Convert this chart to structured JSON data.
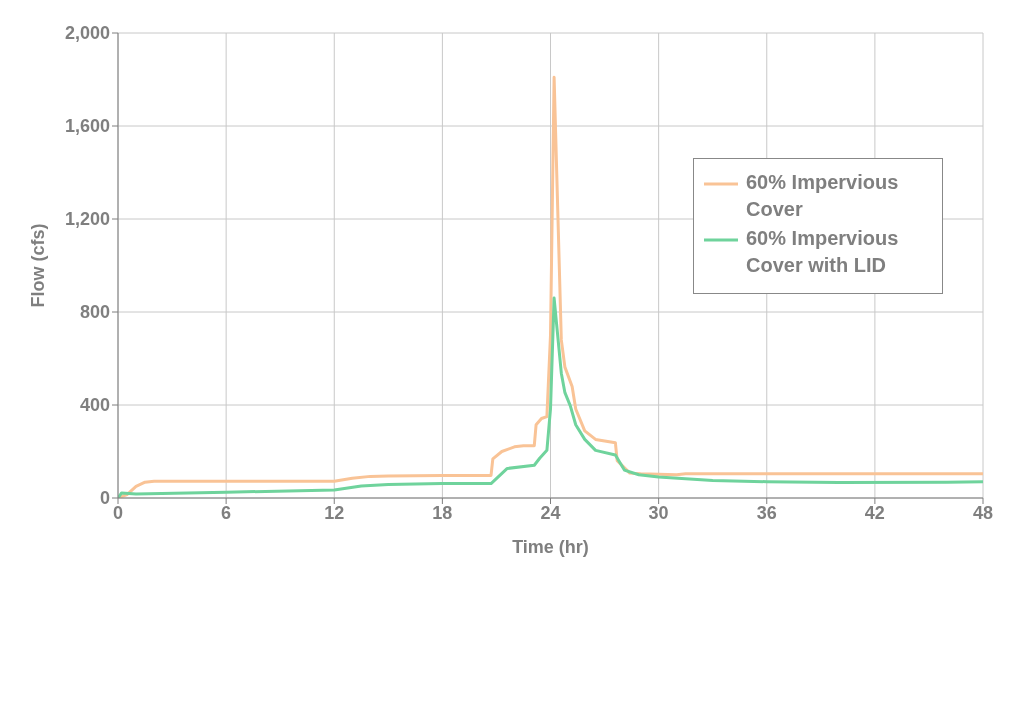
{
  "chart_data": {
    "type": "line",
    "xlabel": "Time (hr)",
    "ylabel": "Flow (cfs)",
    "xlim": [
      0,
      48
    ],
    "xticks": [
      0,
      6,
      12,
      18,
      24,
      30,
      36,
      42,
      48
    ],
    "ylim": [
      0,
      2000
    ],
    "yticks": [
      0,
      400,
      800,
      {
        "value": 1200,
        "label": "1,200"
      },
      {
        "value": 1600,
        "label": "1,600"
      },
      {
        "value": 2000,
        "label": "2,000"
      }
    ],
    "grid": true,
    "legend": "top right",
    "marker": "none",
    "line_style": "solid",
    "series": [
      {
        "name": "60% Impervious Cover",
        "color": "#f9c396",
        "x": [
          0,
          0.5,
          1,
          1.5,
          2,
          12,
          13,
          14,
          15,
          18,
          20.7,
          20.8,
          21.3,
          22,
          22.5,
          23.1,
          23.2,
          23.5,
          23.8,
          24,
          24.2,
          24.6,
          24.8,
          25.2,
          25.4,
          25.9,
          26.5,
          27.6,
          27.7,
          28.4,
          29,
          30,
          31,
          31.5,
          48
        ],
        "values": [
          0,
          15,
          50,
          68,
          72,
          72,
          85,
          93,
          95,
          97,
          97,
          168,
          200,
          220,
          225,
          225,
          315,
          342,
          350,
          700,
          1810,
          680,
          563,
          480,
          383,
          289,
          252,
          238,
          161,
          107,
          104,
          102,
          100,
          104,
          104
        ]
      },
      {
        "name": "60% Impervious Cover with LID",
        "color": "#6fd39c",
        "x": [
          0,
          0.2,
          1,
          6,
          12,
          13.5,
          15,
          18,
          20.7,
          21.6,
          23.1,
          23.4,
          23.8,
          24,
          24.2,
          24.6,
          24.8,
          25.1,
          25.4,
          25.9,
          26.5,
          27.6,
          28.1,
          28.9,
          30,
          33,
          36,
          40,
          46,
          48
        ],
        "values": [
          0,
          22,
          17,
          25,
          34,
          52,
          58,
          62,
          62,
          127,
          141,
          171,
          205,
          383,
          860,
          537,
          453,
          396,
          315,
          252,
          205,
          185,
          120,
          100,
          90,
          75,
          70,
          67,
          68,
          70
        ]
      }
    ]
  }
}
